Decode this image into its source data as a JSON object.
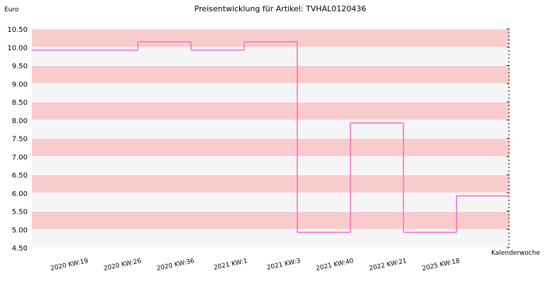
{
  "chart_data": {
    "type": "line",
    "step": true,
    "title": "Preisentwicklung für Artikel: TVHAL0120436",
    "ylabel": "Euro",
    "xlabel": "Kalenderwoche",
    "ylim": [
      4.5,
      10.5
    ],
    "yticks": [
      "10.50",
      "10.00",
      "9.50",
      "9.00",
      "8.50",
      "8.00",
      "7.50",
      "7.00",
      "6.50",
      "6.00",
      "5.50",
      "5.00",
      "4.50"
    ],
    "categories": [
      "2020 KW:19",
      "2020 KW:26",
      "2020 KW:36",
      "2021 KW:1",
      "2021 KW:3",
      "2021 KW:40",
      "2022 KW:21",
      "2025 KW:18"
    ],
    "series": [
      {
        "values": [
          9.92,
          10.15,
          9.92,
          10.15,
          4.92,
          7.92,
          4.92,
          5.92
        ]
      }
    ],
    "colors": {
      "line": "#ff66cc",
      "band_dark": "#f8cccc",
      "band_light": "#f5f5f5",
      "grid": "#ffffff"
    },
    "grid": true,
    "legend": "none"
  }
}
